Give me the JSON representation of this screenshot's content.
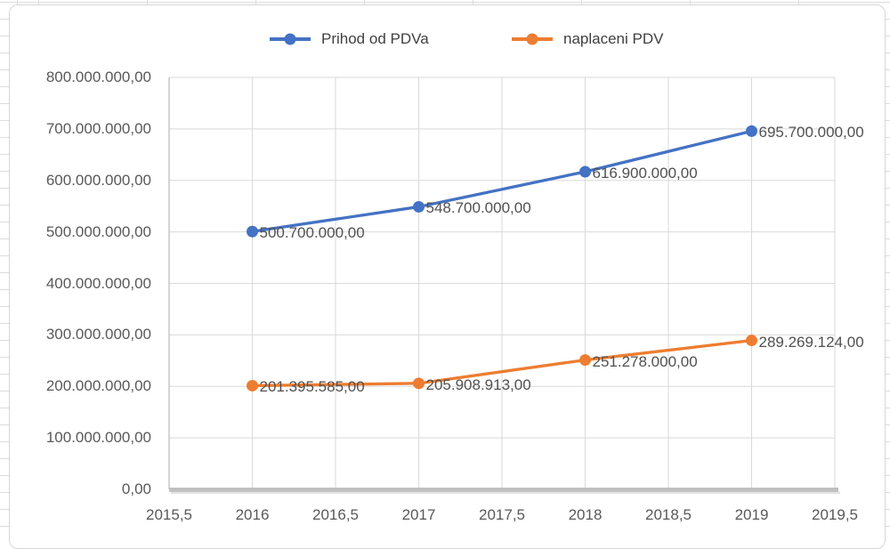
{
  "chart_data": {
    "type": "line",
    "title": "",
    "legend_position": "top",
    "grid": "on",
    "grid_color": "#d9d9d9",
    "axis_color": "#bfbfbf",
    "text_color": "#595959",
    "x_range": [
      2015.5,
      2019.5
    ],
    "y_range": [
      0,
      800000000
    ],
    "x_ticks": {
      "values": [
        2015.5,
        2016,
        2016.5,
        2017,
        2017.5,
        2018,
        2018.5,
        2019,
        2019.5
      ],
      "labels": [
        "2015,5",
        "2016",
        "2016,5",
        "2017",
        "2017,5",
        "2018",
        "2018,5",
        "2019",
        "2019,5"
      ]
    },
    "y_ticks": {
      "values": [
        0,
        100000000,
        200000000,
        300000000,
        400000000,
        500000000,
        600000000,
        700000000,
        800000000
      ],
      "labels": [
        "0,00",
        "100.000.000,00",
        "200.000.000,00",
        "300.000.000,00",
        "400.000.000,00",
        "500.000.000,00",
        "600.000.000,00",
        "700.000.000,00",
        "800.000.000,00"
      ]
    },
    "series": [
      {
        "name": "Prihod od PDVa",
        "color": "#4472C4",
        "x": [
          2016,
          2017,
          2018,
          2019
        ],
        "values": [
          500700000,
          548700000,
          616900000,
          695700000
        ],
        "labels": [
          "500.700.000,00",
          "548.700.000,00",
          "616.900.000,00",
          "695.700.000,00"
        ]
      },
      {
        "name": "naplaceni PDV",
        "color": "#ED7D31",
        "x": [
          2016,
          2017,
          2018,
          2019
        ],
        "values": [
          201395585,
          205908913,
          251278000,
          289269124
        ],
        "labels": [
          "201.395.585,00",
          "205.908.913,00",
          "251.278.000,00",
          "289.269.124,00"
        ]
      }
    ]
  }
}
